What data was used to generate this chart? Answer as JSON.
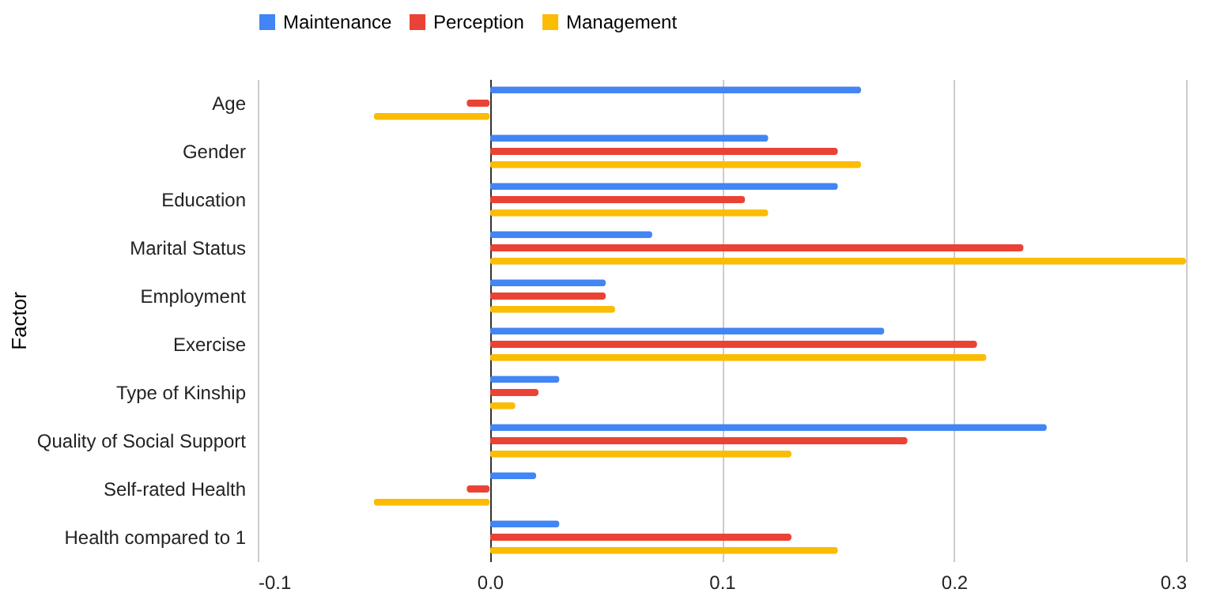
{
  "chart_data": {
    "type": "bar",
    "orientation": "horizontal",
    "ylabel": "Factor",
    "categories": [
      "Age",
      "Gender",
      "Education",
      "Marital Status",
      "Employment",
      "Exercise",
      "Type of Kinship",
      "Quality of Social Support",
      "Self-rated Health",
      "Health compared to 1"
    ],
    "series": [
      {
        "name": "Maintenance",
        "color": "#4285f4",
        "values": [
          0.16,
          0.12,
          0.15,
          0.07,
          0.05,
          0.17,
          0.03,
          0.24,
          0.02,
          0.03
        ]
      },
      {
        "name": "Perception",
        "color": "#ea4335",
        "values": [
          -0.01,
          0.15,
          0.11,
          0.23,
          0.05,
          0.21,
          0.021,
          0.18,
          -0.01,
          0.13
        ]
      },
      {
        "name": "Management",
        "color": "#fbbc04",
        "values": [
          -0.05,
          0.16,
          0.12,
          0.3,
          0.054,
          0.214,
          0.011,
          0.13,
          -0.05,
          0.15
        ]
      }
    ],
    "xlim": [
      -0.1,
      0.3
    ],
    "xticks": [
      {
        "value": -0.1,
        "label": "-0.1"
      },
      {
        "value": 0,
        "label": "0.0"
      },
      {
        "value": 0.1,
        "label": "0.1"
      },
      {
        "value": 0.2,
        "label": "0.2"
      },
      {
        "value": 0.3,
        "label": "0.3"
      }
    ],
    "grid": "x",
    "legend": "top"
  }
}
